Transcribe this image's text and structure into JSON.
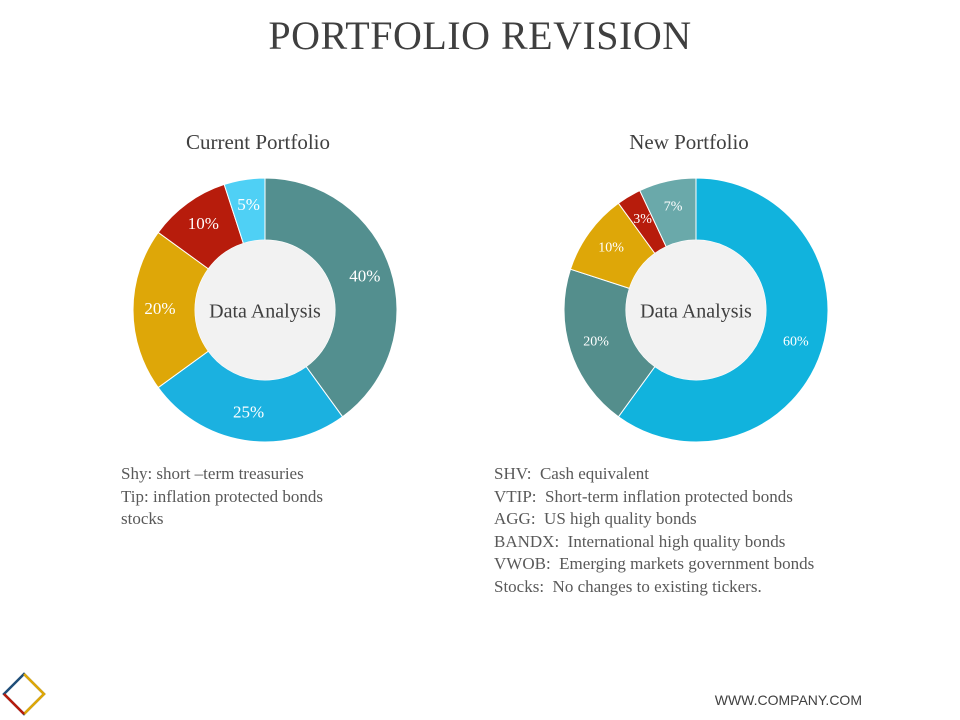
{
  "page": {
    "title": "PORTFOLIO REVISION",
    "footer_url": "WWW.COMPANY.COM"
  },
  "current": {
    "legend": [
      "Shy: short –term treasuries",
      "Tip: inflation protected bonds",
      "stocks"
    ]
  },
  "new": {
    "legend": [
      "SHV:  Cash equivalent",
      "VTIP:  Short-term inflation protected bonds",
      "AGG:  US high quality bonds",
      "BANDX:  International high quality bonds",
      "VWOB:  Emerging markets government bonds",
      "Stocks:  No changes to existing tickers."
    ]
  },
  "chart_data": [
    {
      "type": "donut",
      "title": "Current Portfolio",
      "center_label": "Data Analysis",
      "values": [
        40,
        25,
        20,
        10,
        5
      ],
      "labels": [
        "40%",
        "25%",
        "20%",
        "10%",
        "5%"
      ],
      "colors": [
        "#538f8f",
        "#1bb1e0",
        "#dea708",
        "#b71c0c",
        "#4fd0f5"
      ]
    },
    {
      "type": "donut",
      "title": "New Portfolio",
      "center_label": "Data Analysis",
      "values": [
        60,
        20,
        10,
        3,
        7
      ],
      "labels": [
        "60%",
        "20%",
        "10%",
        "3%",
        "7%"
      ],
      "colors": [
        "#11b3dd",
        "#548e8c",
        "#dea708",
        "#b71c0c",
        "#6aa9aa"
      ]
    }
  ]
}
